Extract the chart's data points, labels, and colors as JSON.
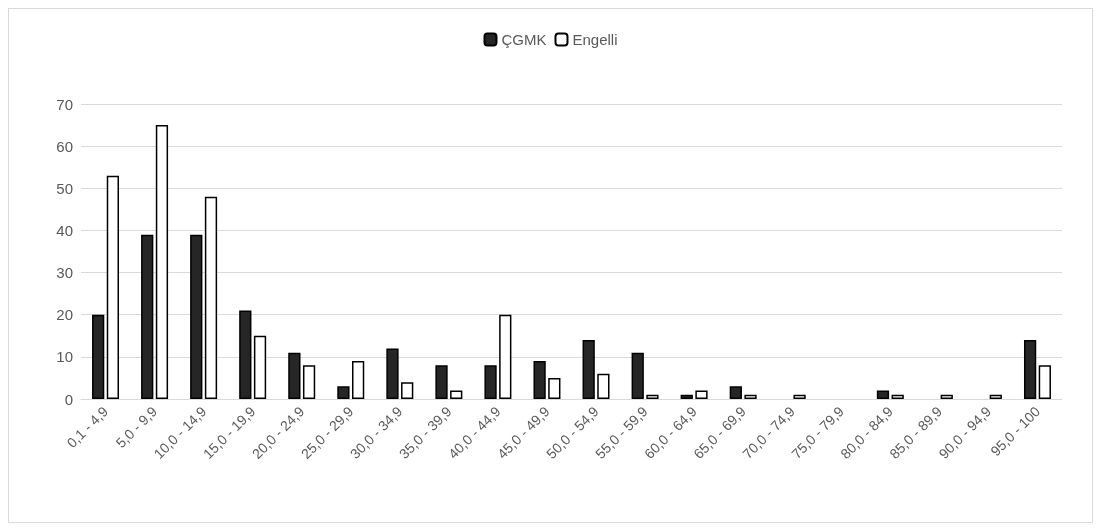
{
  "chart_data": {
    "type": "bar",
    "categories": [
      "0,1 - 4,9",
      "5,0 - 9,9",
      "10,0 - 14,9",
      "15,0 - 19,9",
      "20,0 - 24,9",
      "25,0 - 29,9",
      "30,0 - 34,9",
      "35,0 - 39,9",
      "40,0 - 44,9",
      "45,0 - 49,9",
      "50,0 - 54,9",
      "55,0 - 59,9",
      "60,0 - 64,9",
      "65,0 - 69,9",
      "70,0 - 74,9",
      "75,0 - 79,9",
      "80,0 - 84,9",
      "85,0 - 89,9",
      "90,0 - 94,9",
      "95,0 - 100"
    ],
    "series": [
      {
        "name": "ÇGMK",
        "color": "#262626",
        "values": [
          20,
          39,
          39,
          21,
          11,
          3,
          12,
          8,
          8,
          9,
          14,
          11,
          1,
          3,
          0,
          0,
          2,
          0,
          0,
          14
        ]
      },
      {
        "name": "Engelli",
        "color": "#ffffff",
        "values": [
          53,
          65,
          48,
          15,
          8,
          9,
          4,
          2,
          20,
          5,
          6,
          1,
          2,
          1,
          1,
          0,
          1,
          1,
          1,
          8
        ]
      }
    ],
    "ylim": [
      0,
      70
    ],
    "yticks": [
      0,
      10,
      20,
      30,
      40,
      50,
      60,
      70
    ],
    "grid": "y",
    "legend": "top"
  }
}
